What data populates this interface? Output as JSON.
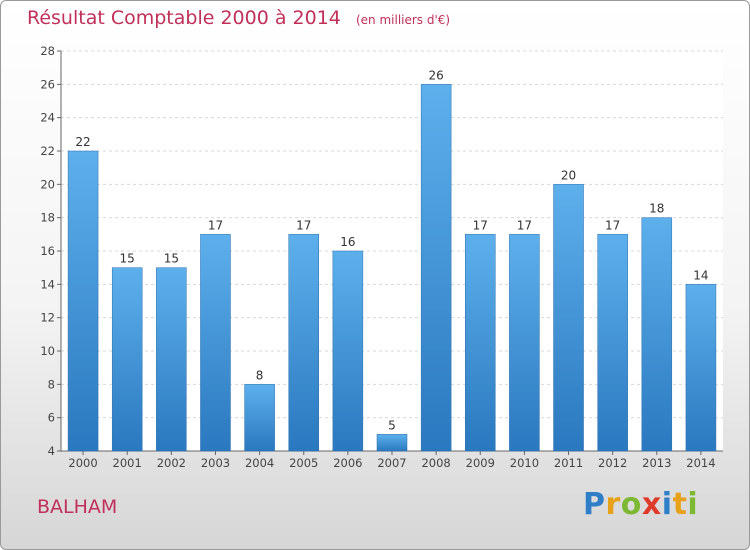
{
  "chart_data": {
    "type": "bar",
    "title": "Résultat Comptable 2000 à 2014",
    "unit": "(en milliers d'€)",
    "categories": [
      "2000",
      "2001",
      "2002",
      "2003",
      "2004",
      "2005",
      "2006",
      "2007",
      "2008",
      "2009",
      "2010",
      "2011",
      "2012",
      "2013",
      "2014"
    ],
    "values": [
      22,
      15,
      15,
      17,
      8,
      17,
      16,
      5,
      26,
      17,
      17,
      20,
      17,
      18,
      14
    ],
    "ylim": [
      4,
      28
    ],
    "yticks": [
      4,
      6,
      8,
      10,
      12,
      14,
      16,
      18,
      20,
      22,
      24,
      26,
      28
    ],
    "grid": true,
    "bar_color": "#4a9de0"
  },
  "commune": "BALHAM",
  "logo": {
    "letters": [
      "P",
      "r",
      "o",
      "x",
      "i",
      "t",
      "i"
    ],
    "colors": [
      "#2f7fc8",
      "#e8a21a",
      "#7cb832",
      "#e03a2a",
      "#2f7fc8",
      "#e8a21a",
      "#7cb832"
    ]
  }
}
